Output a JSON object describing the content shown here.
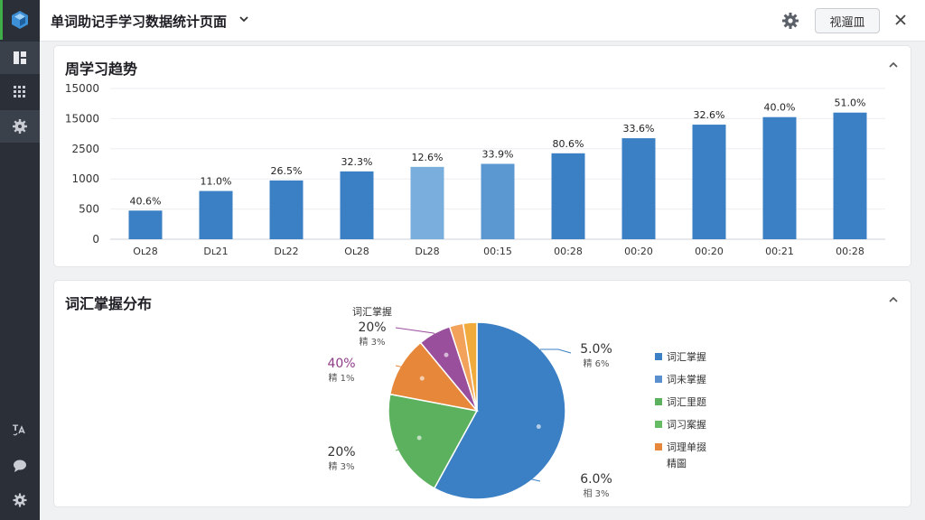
{
  "topbar": {
    "title": "单词助记手学习数据统计页面",
    "button_label": "视遛皿"
  },
  "trend_panel": {
    "title": "周学习趋势"
  },
  "dist_panel": {
    "title": "词汇掌握分布"
  },
  "colors": {
    "bar": "#3b7fc4",
    "bar_light": "#7aaedc",
    "bar_mid": "#5b97d0",
    "pie_blue": "#3b7fc4",
    "pie_green": "#5cb15f",
    "pie_orange": "#e7873a",
    "pie_purple": "#9a4f9c",
    "pie_amber": "#f0ab3c",
    "sidebar_bg": "#2b3038",
    "accent": "#3fae49"
  },
  "chart_data": [
    {
      "type": "bar",
      "title": "",
      "xlabel": "",
      "ylabel": "",
      "y_tick_labels": [
        "0",
        "500",
        "1000",
        "2500",
        "15000",
        "15000"
      ],
      "grid": true,
      "categories": [
        "Oct28",
        "Dt21",
        "Dt22",
        "Oc28",
        "Dt28",
        "00:15",
        "00:28",
        "00:20",
        "00:20",
        "00:21",
        "00:28"
      ],
      "tick_labels": [
        "Oւ28",
        "Dւ21",
        "Dւ22",
        "Oւ28",
        "Dւ28",
        "00:15",
        "00:28",
        "00:20",
        "00:20",
        "00:21",
        "00:28"
      ],
      "values": [
        0.95,
        1.6,
        1.95,
        2.25,
        2.4,
        2.5,
        2.85,
        3.35,
        3.8,
        4.05,
        4.2
      ],
      "value_unit": "tick index",
      "data_labels": [
        "40.6%",
        "11.0%",
        "26.5%",
        "32.3%",
        "12.6%",
        "33.9%",
        "80.6%",
        "33.6%",
        "32.6%",
        "40.0%",
        "51.0%"
      ],
      "bar_tones": [
        "dark",
        "dark",
        "dark",
        "dark",
        "light",
        "mid",
        "dark",
        "dark",
        "dark",
        "dark",
        "dark"
      ]
    },
    {
      "type": "pie",
      "slices": [
        {
          "name": "blue",
          "value": 58,
          "color": "#3b7fc4"
        },
        {
          "name": "green",
          "value": 20,
          "color": "#5cb15f"
        },
        {
          "name": "orange",
          "value": 11,
          "color": "#e7873a"
        },
        {
          "name": "purple",
          "value": 6,
          "color": "#9a4f9c"
        },
        {
          "name": "lightorange",
          "value": 2.5,
          "color": "#f2a25a"
        },
        {
          "name": "amber",
          "value": 2.5,
          "color": "#f0ab3c"
        }
      ],
      "callouts": [
        {
          "pct": "20%",
          "sub": "精 3%",
          "head": "词汇掌握",
          "pct_color": "#333333"
        },
        {
          "pct": "40%",
          "sub": "精 1%",
          "head": "",
          "pct_color": "#8e3b86"
        },
        {
          "pct": "20%",
          "sub": "精 3%",
          "head": "",
          "pct_color": "#333333"
        },
        {
          "pct": "5.0%",
          "sub": "精 6%",
          "head": "",
          "pct_color": "#333333"
        },
        {
          "pct": "6.0%",
          "sub": "相 3%",
          "head": "",
          "pct_color": "#333333"
        }
      ],
      "legend": [
        {
          "label": "词汇掌握",
          "color": "#3b7fc4"
        },
        {
          "label": "词未掌握",
          "color": "#5b90cf"
        },
        {
          "label": "词汇里题",
          "color": "#5cb15f"
        },
        {
          "label": "词习案握",
          "color": "#67bb63"
        },
        {
          "label": "词理单掇",
          "color": "#e7873a"
        }
      ],
      "legend_extra": "精圖",
      "legend_placement": "right"
    }
  ]
}
